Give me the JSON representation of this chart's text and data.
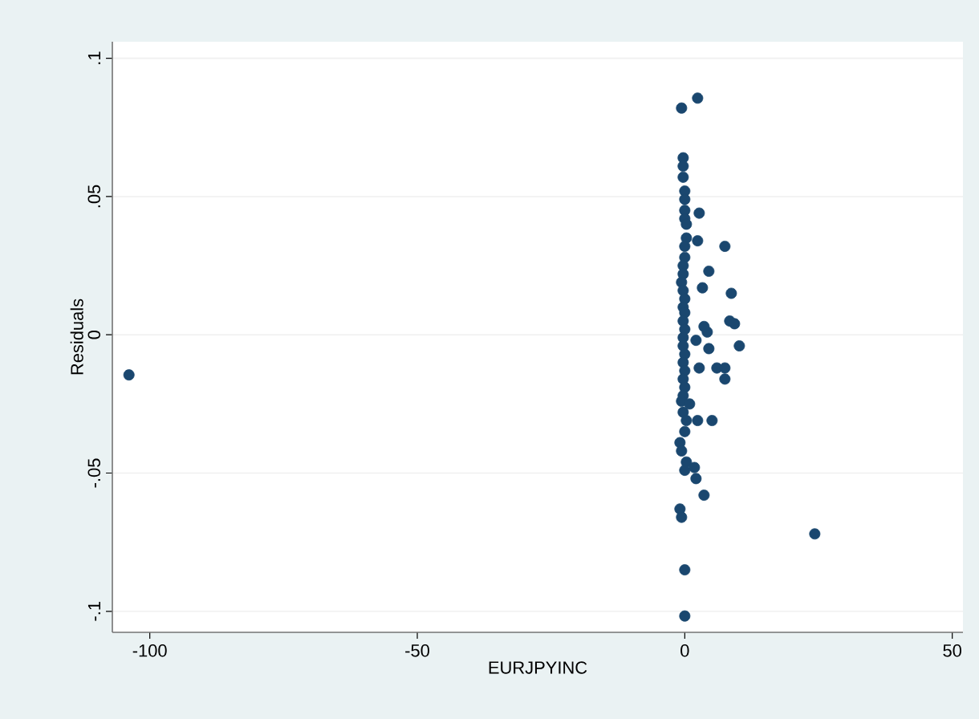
{
  "chart_data": {
    "type": "scatter",
    "xlabel": "EURJPYINC",
    "ylabel": "Residuals",
    "xlim": [
      -107,
      52
    ],
    "ylim": [
      -0.1076,
      0.106
    ],
    "xticks": [
      -100,
      -50,
      0,
      50
    ],
    "yticks": [
      {
        "value": -0.1,
        "label": "-.1"
      },
      {
        "value": -0.05,
        "label": "-.05"
      },
      0,
      {
        "value": 0.05,
        "label": ".05"
      },
      {
        "value": 0.1,
        "label": ".1"
      }
    ],
    "grid": "y",
    "marker": "circle",
    "series": [
      {
        "color": "#1a476f",
        "x": [
          -103.9,
          24.3,
          2.4,
          -0.6,
          -0.3,
          -0.3,
          -0.3,
          0,
          0,
          0,
          0,
          0.3,
          0.3,
          0,
          0,
          -0.3,
          -0.3,
          -0.6,
          -0.3,
          0,
          -0.3,
          0,
          -0.3,
          0,
          -0.3,
          -0.3,
          0,
          -0.3,
          0,
          -0.3,
          0,
          -0.3,
          -0.6,
          -0.3,
          0.3,
          0,
          -0.9,
          -0.6,
          0.3,
          0,
          -0.9,
          -0.6,
          0,
          0,
          2.7,
          2.4,
          7.5,
          4.5,
          3.3,
          8.7,
          8.4,
          9.3,
          4.2,
          4.5,
          10.2,
          6,
          7.5,
          7.5,
          2.7,
          5.1,
          1.8,
          2.1,
          3.6,
          0.9,
          2.4,
          3.6,
          2.1
        ],
        "values": [
          -0.0145,
          -0.072,
          0.0856,
          0.082,
          0.064,
          0.061,
          0.057,
          0.052,
          0.049,
          0.045,
          0.042,
          0.04,
          0.035,
          0.032,
          0.028,
          0.025,
          0.022,
          0.019,
          0.016,
          0.013,
          0.01,
          0.008,
          0.005,
          0.002,
          -0.001,
          -0.004,
          -0.007,
          -0.01,
          -0.013,
          -0.016,
          -0.019,
          -0.022,
          -0.024,
          -0.028,
          -0.031,
          -0.035,
          -0.039,
          -0.042,
          -0.046,
          -0.049,
          -0.063,
          -0.066,
          -0.085,
          -0.1017,
          0.044,
          0.034,
          0.032,
          0.023,
          0.017,
          0.015,
          0.005,
          0.004,
          0.001,
          -0.005,
          -0.004,
          -0.012,
          -0.012,
          -0.016,
          -0.012,
          -0.031,
          -0.048,
          -0.052,
          -0.058,
          -0.025,
          -0.031,
          0.003,
          -0.002
        ]
      }
    ]
  }
}
